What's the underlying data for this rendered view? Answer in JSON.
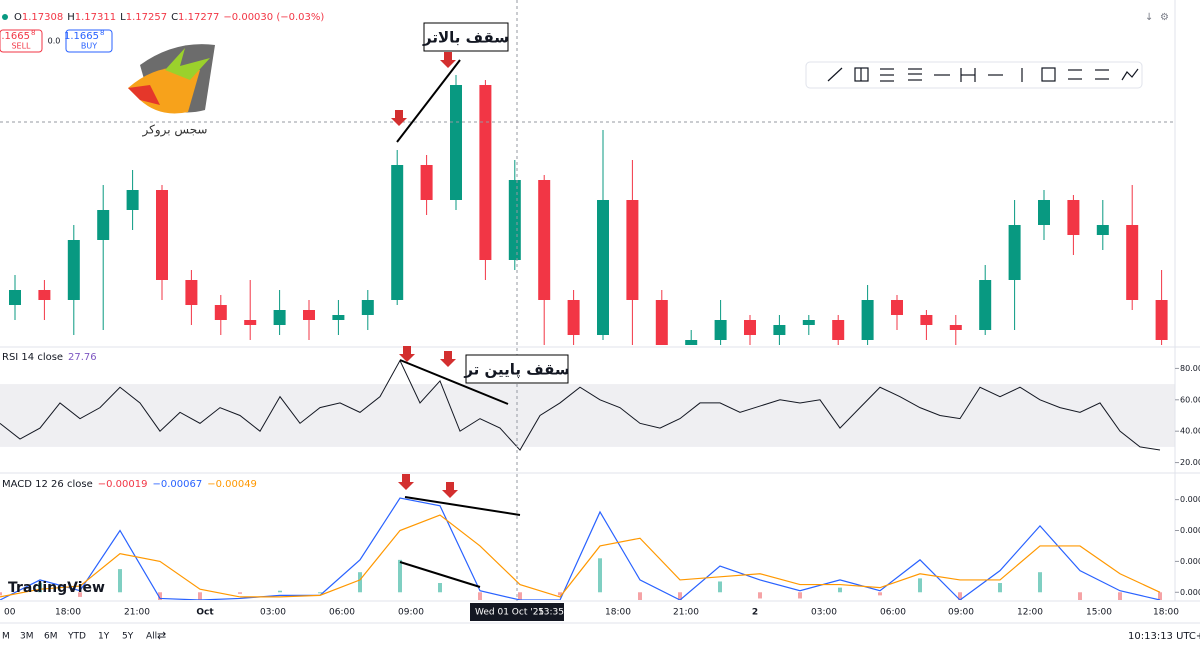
{
  "header": {
    "ohlc": [
      "O",
      "1.17308",
      "H",
      "1.17311",
      "L",
      "1.17257",
      "C",
      "1.17277",
      "−0.00030 (−0.03%)"
    ],
    "sell_price": "1.1665",
    "sell_sup": "8",
    "sell": "SELL",
    "spread": "0.0",
    "buy_price": "1.1665",
    "buy_sup": "8",
    "buy": "BUY"
  },
  "logo_text": "سجس بروکر",
  "annotations": [
    "سقف بالاتر",
    "سقف پایین تر"
  ],
  "watermark": "TradingView",
  "chart_data": [
    {
      "type": "candlestick",
      "up_color": "#089981",
      "down_color": "#f23645",
      "ylim": [
        1.17015,
        1.1735
      ],
      "candles": {
        "open": [
          1.17055,
          1.1707,
          1.1706,
          1.1712,
          1.1715,
          1.1717,
          1.1708,
          1.17055,
          1.1704,
          1.17035,
          1.1705,
          1.1704,
          1.17045,
          1.1706,
          1.17195,
          1.1716,
          1.17275,
          1.171,
          1.1718,
          1.1706,
          1.17025,
          1.1716,
          1.1706,
          1.17015,
          1.1702,
          1.1704,
          1.17025,
          1.17035,
          1.1704,
          1.1702,
          1.1706,
          1.17045,
          1.17035,
          1.1703,
          1.1708,
          1.17135,
          1.1716,
          1.17125,
          1.17135,
          1.1706
        ],
        "close": [
          1.1707,
          1.1706,
          1.1712,
          1.1715,
          1.1717,
          1.1708,
          1.17055,
          1.1704,
          1.17035,
          1.1705,
          1.1704,
          1.17045,
          1.1706,
          1.17195,
          1.1716,
          1.17275,
          1.171,
          1.1718,
          1.1706,
          1.17025,
          1.1716,
          1.1706,
          1.17015,
          1.1702,
          1.1704,
          1.17025,
          1.17035,
          1.1704,
          1.1702,
          1.1706,
          1.17045,
          1.17035,
          1.1703,
          1.1708,
          1.17135,
          1.1716,
          1.17125,
          1.17135,
          1.1706,
          1.1702
        ],
        "high": [
          1.17085,
          1.1708,
          1.17135,
          1.17175,
          1.1719,
          1.17175,
          1.1709,
          1.17065,
          1.1708,
          1.1707,
          1.1706,
          1.1706,
          1.1707,
          1.1721,
          1.17205,
          1.17285,
          1.1728,
          1.172,
          1.17185,
          1.1707,
          1.1723,
          1.172,
          1.1707,
          1.1703,
          1.1706,
          1.17045,
          1.17045,
          1.17045,
          1.17045,
          1.17075,
          1.17065,
          1.1705,
          1.17045,
          1.17095,
          1.1716,
          1.1717,
          1.17165,
          1.1716,
          1.17175,
          1.1709
        ],
        "low": [
          1.1704,
          1.1704,
          1.17025,
          1.1703,
          1.1713,
          1.1706,
          1.17035,
          1.17025,
          1.1702,
          1.17025,
          1.1702,
          1.17025,
          1.1703,
          1.17055,
          1.17145,
          1.1715,
          1.1708,
          1.1709,
          1.17015,
          1.17015,
          1.1702,
          1.17015,
          1.17015,
          1.17015,
          1.17015,
          1.17015,
          1.17015,
          1.17025,
          1.17015,
          1.17015,
          1.1703,
          1.1702,
          1.17015,
          1.17025,
          1.1703,
          1.1712,
          1.17105,
          1.1711,
          1.1705,
          1.17015
        ]
      }
    },
    {
      "type": "line",
      "title": "RSI 14 close",
      "value_label": "27.76",
      "color": "#131722",
      "band": [
        30,
        70
      ],
      "ylim": [
        14,
        93
      ],
      "yticks": [
        {
          "value": 80,
          "label": "80.00"
        },
        {
          "value": 60,
          "label": "60.00"
        },
        {
          "value": 40,
          "label": "40.00"
        },
        {
          "value": 20,
          "label": "20.00"
        }
      ],
      "values": [
        45,
        35,
        42,
        58,
        48,
        55,
        68,
        58,
        40,
        52,
        45,
        55,
        50,
        40,
        62,
        45,
        55,
        58,
        52,
        62,
        85,
        58,
        72,
        40,
        48,
        42,
        28,
        50,
        58,
        68,
        60,
        55,
        45,
        42,
        48,
        58,
        58,
        52,
        56,
        60,
        58,
        60,
        42,
        55,
        68,
        62,
        55,
        50,
        48,
        68,
        62,
        68,
        60,
        55,
        52,
        58,
        40,
        30,
        28
      ]
    },
    {
      "type": "macd",
      "title": "MACD 12 26 close",
      "value_labels": [
        "−0.00019",
        "−0.00067",
        "−0.00049"
      ],
      "ylim": [
        -5e-05,
        0.00074
      ],
      "yticks": [
        {
          "value": 0.0006,
          "label": "0.000"
        },
        {
          "value": 0.0004,
          "label": "0.000"
        },
        {
          "value": 0.0002,
          "label": "0.000"
        },
        {
          "value": 0,
          "label": "0.000"
        }
      ],
      "series": [
        {
          "color": "#2962ff",
          "values": [
            -5e-05,
            8e-05,
            1e-05,
            0.0004,
            -4e-05,
            -5e-05,
            -4e-05,
            -2e-05,
            -2e-05,
            0.00021,
            0.00061,
            0.00056,
            1e-05,
            -5e-05,
            -5e-05,
            0.00052,
            8e-05,
            -5e-05,
            0.00017,
            8e-05,
            1e-05,
            8e-05,
            1e-05,
            0.00021,
            -5e-05,
            0.00014,
            0.00043,
            0.00014,
            1e-05,
            -5e-05
          ]
        },
        {
          "color": "#ff9800",
          "values": [
            -3e-05,
            2e-05,
            4e-05,
            0.00025,
            0.0002,
            2e-05,
            -3e-05,
            -3e-05,
            -2e-05,
            8e-05,
            0.0004,
            0.0005,
            0.0003,
            5e-05,
            -3e-05,
            0.0003,
            0.00035,
            8e-05,
            0.0001,
            0.00012,
            5e-05,
            5e-05,
            3e-05,
            0.00012,
            8e-05,
            8e-05,
            0.0003,
            0.0003,
            0.00012,
            0
          ]
        }
      ],
      "histogram": {
        "up_color": "#7fcfc2",
        "down_color": "#f5a3a6",
        "values": [
          -2e-05,
          6e-05,
          -3e-05,
          0.00015,
          -0.00024,
          -7e-05,
          -1e-05,
          1e-05,
          0,
          0.00013,
          0.00021,
          6e-05,
          -0.00029,
          -0.0001,
          -2e-05,
          0.00022,
          -0.00027,
          -0.00013,
          7e-05,
          -4e-05,
          -4e-05,
          3e-05,
          -2e-05,
          9e-05,
          -0.00013,
          6e-05,
          0.00013,
          -0.00016,
          -0.00011,
          -5e-05
        ]
      }
    }
  ],
  "time_axis": {
    "labels": [
      "00",
      "18:00",
      "21:00",
      "Oct",
      "03:00",
      "06:00",
      "09:00",
      "18:00",
      "21:00",
      "2",
      "03:00",
      "06:00",
      "09:00",
      "12:00",
      "15:00",
      "18:00"
    ],
    "crosshair_date": "Wed 01 Oct '25",
    "crosshair_time": "13:35"
  },
  "bottom_bar": {
    "ranges": [
      "M",
      "3M",
      "6M",
      "YTD",
      "1Y",
      "5Y",
      "All"
    ],
    "clock": "10:13:13 UTC+3"
  }
}
